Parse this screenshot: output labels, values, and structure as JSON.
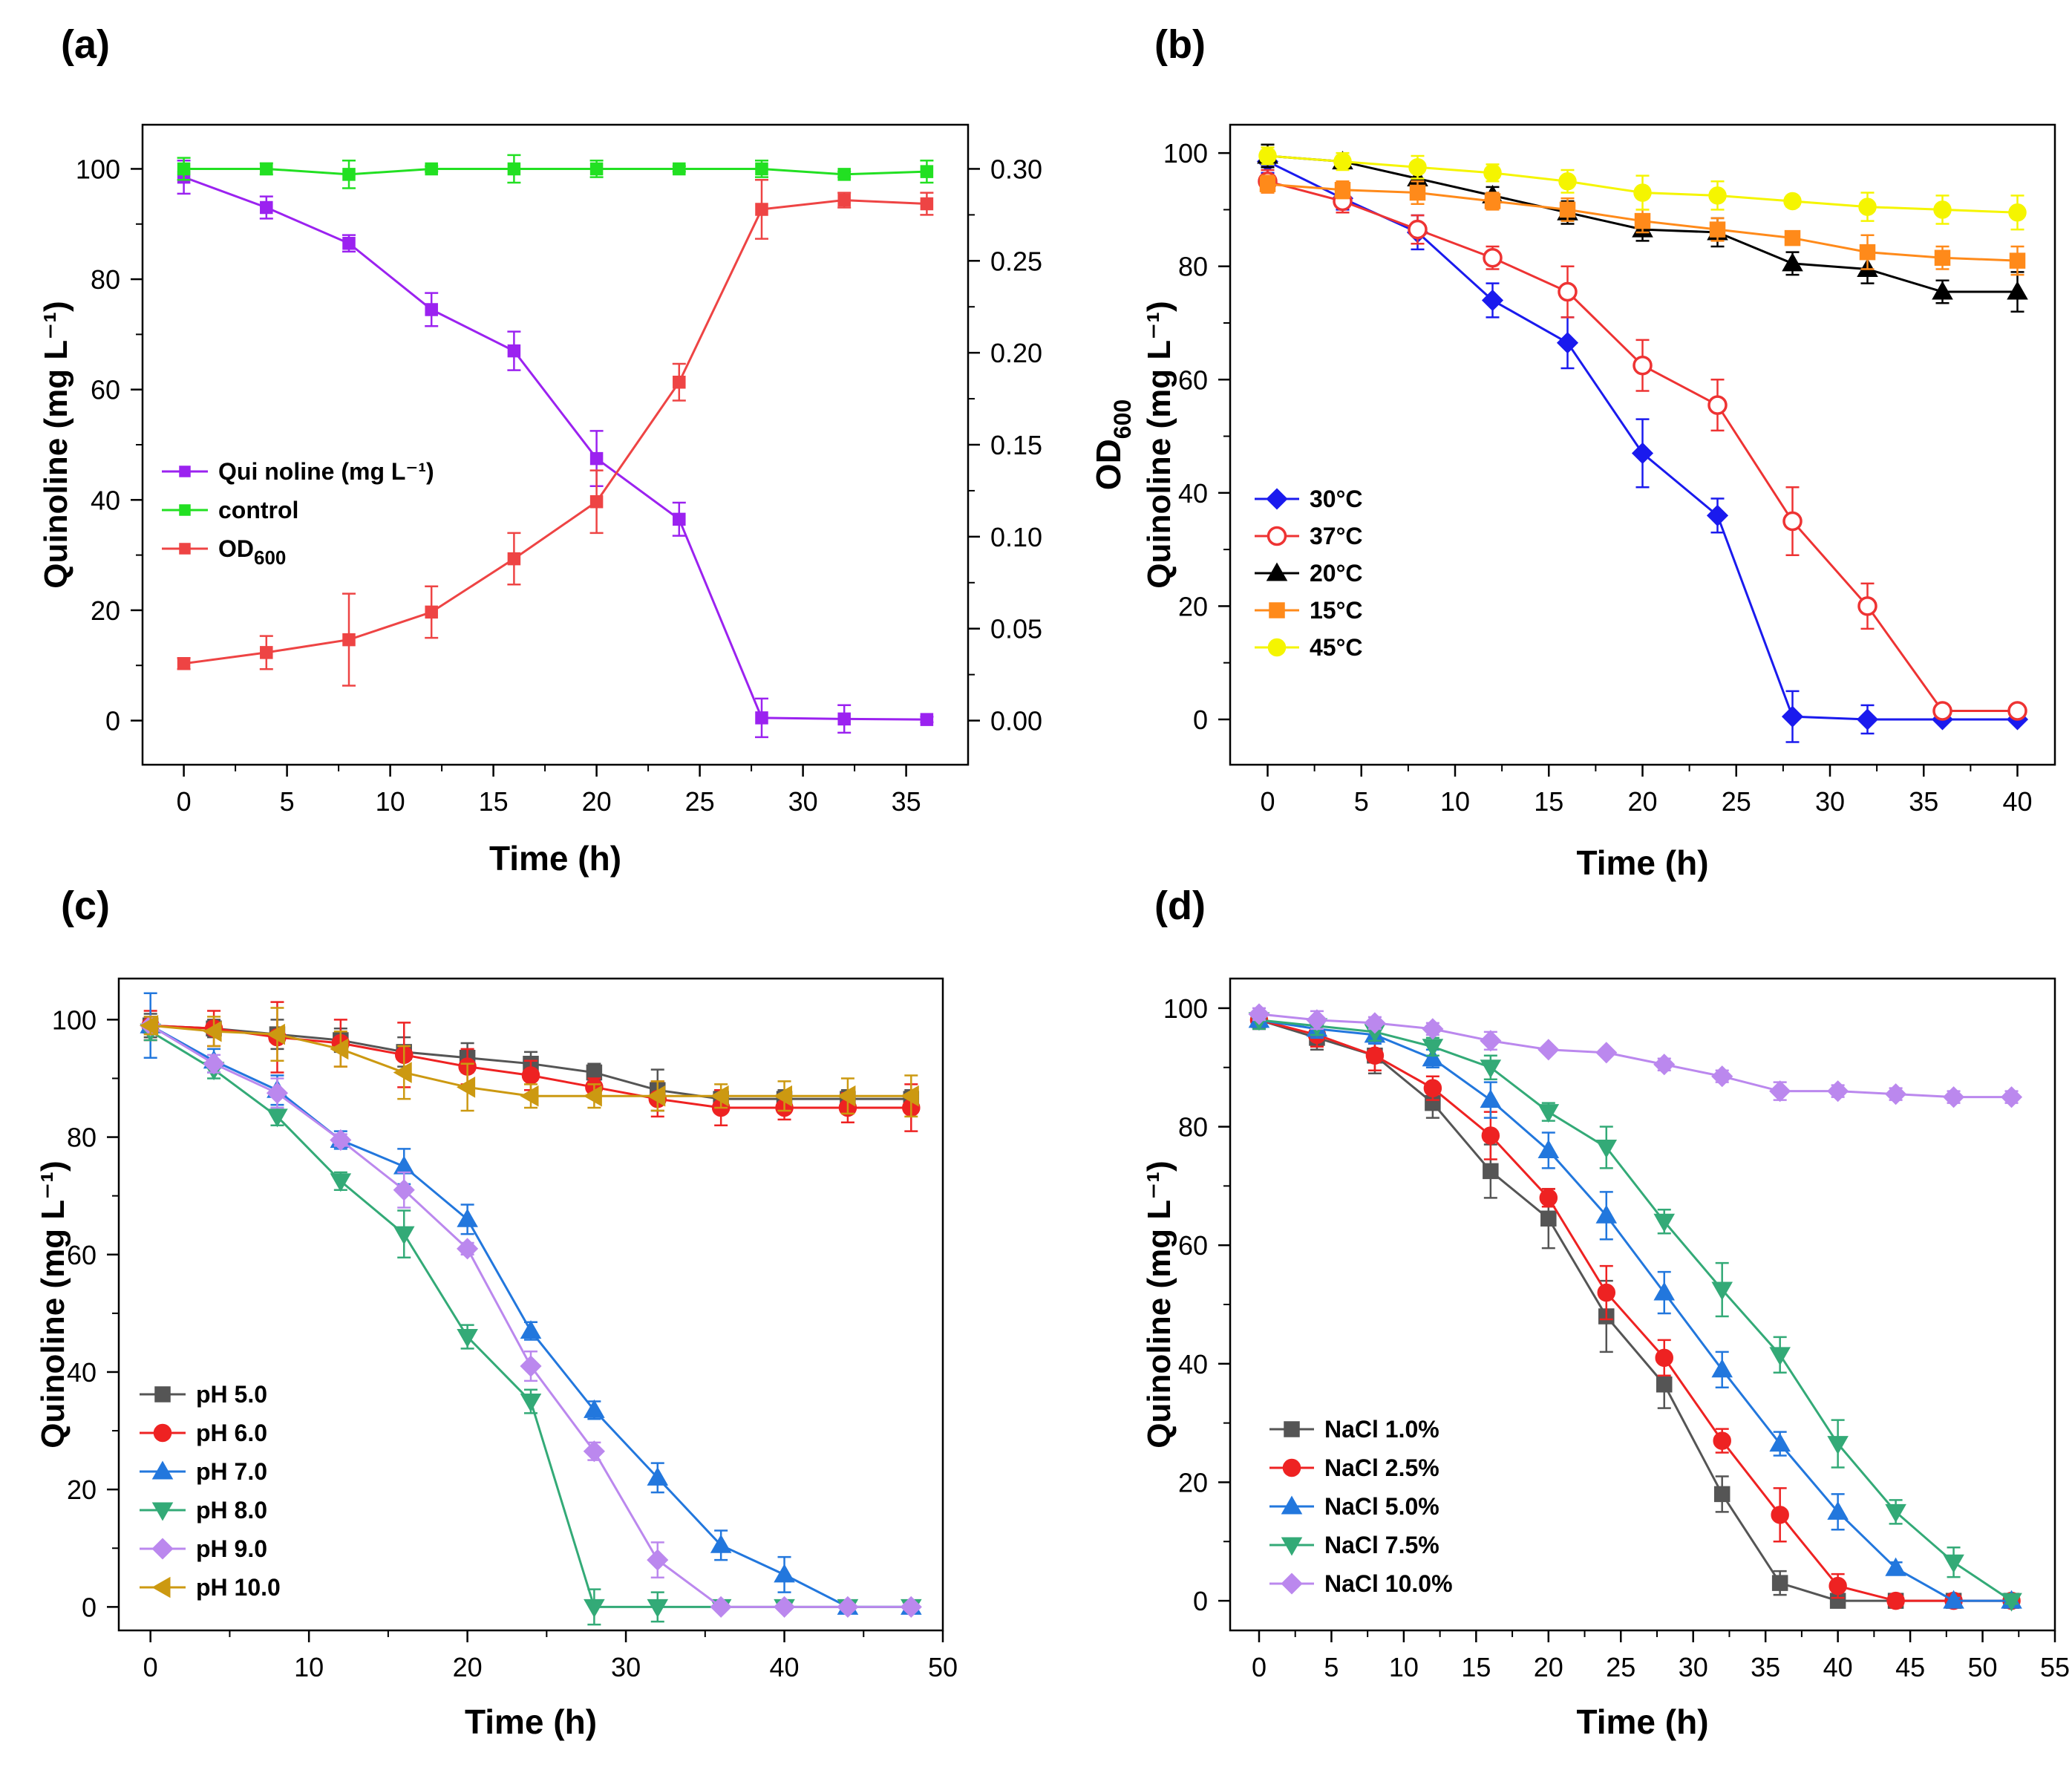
{
  "figure": {
    "colors": {
      "axis": "#000000",
      "background": "#ffffff"
    }
  },
  "chart_data": [
    {
      "id": "a",
      "panel_label": "(a)",
      "type": "line",
      "title": "",
      "xlabel": "Time (h)",
      "ylabel": "Quinoline  (mg L⁻¹)",
      "y2label_main": "OD",
      "y2label_sub": "600",
      "xlim": [
        -2,
        38
      ],
      "ylim": [
        -8,
        108
      ],
      "y2lim": [
        -0.024,
        0.324
      ],
      "xticks": [
        0,
        5,
        10,
        15,
        20,
        25,
        30,
        35
      ],
      "yticks": [
        0,
        20,
        40,
        60,
        80,
        100
      ],
      "y2ticks": [
        "0.00",
        "0.05",
        "0.10",
        "0.15",
        "0.20",
        "0.25",
        "0.30"
      ],
      "legend": {
        "position": "middle-left",
        "entries_text": [
          "Qui noline (mg L⁻¹)",
          "control",
          "OD",
          "600"
        ]
      },
      "series": [
        {
          "name": "Qui noline (mg L⁻¹)",
          "color": "#9b22f0",
          "marker": "square",
          "axis": "left",
          "x": [
            0,
            4,
            8,
            12,
            16,
            20,
            24,
            28,
            32,
            36
          ],
          "y": [
            98.5,
            93,
            86.5,
            74.5,
            67,
            47.5,
            36.5,
            0.5,
            0.3,
            0.2
          ],
          "err": [
            3,
            2,
            1.5,
            3,
            3.5,
            5,
            3,
            3.5,
            2.5,
            0.5
          ]
        },
        {
          "name": "control",
          "color": "#22e022",
          "marker": "square",
          "axis": "left",
          "x": [
            0,
            4,
            8,
            12,
            16,
            20,
            24,
            28,
            32,
            36
          ],
          "y": [
            100,
            100,
            99,
            100,
            100,
            100,
            100,
            100,
            99,
            99.5
          ],
          "err": [
            2,
            1,
            2.5,
            0.5,
            2.5,
            1.5,
            0.5,
            1.5,
            0.5,
            2
          ]
        },
        {
          "name": "OD600",
          "color": "#ee4444",
          "marker": "square",
          "axis": "right",
          "x": [
            0,
            4,
            8,
            12,
            16,
            20,
            24,
            28,
            32,
            36
          ],
          "y": [
            0.031,
            0.037,
            0.044,
            0.059,
            0.088,
            0.119,
            0.184,
            0.278,
            0.283,
            0.281
          ],
          "err": [
            0.003,
            0.009,
            0.025,
            0.014,
            0.014,
            0.017,
            0.01,
            0.016,
            0.004,
            0.006
          ]
        }
      ]
    },
    {
      "id": "b",
      "panel_label": "(b)",
      "type": "line",
      "title": "",
      "xlabel": "Time (h)",
      "ylabel": "Quinoline  (mg L⁻¹)",
      "xlim": [
        -2,
        42
      ],
      "ylim": [
        -8,
        105
      ],
      "xticks": [
        0,
        5,
        10,
        15,
        20,
        25,
        30,
        35,
        40
      ],
      "yticks": [
        0,
        20,
        40,
        60,
        80,
        100
      ],
      "legend": {
        "position": "lower-left"
      },
      "series": [
        {
          "name": "30°C",
          "color": "#1a1aee",
          "marker": "diamond",
          "fill": true,
          "x": [
            0,
            4,
            8,
            12,
            16,
            20,
            24,
            28,
            32,
            36,
            40
          ],
          "y": [
            98.5,
            92,
            86,
            74,
            66.5,
            47,
            36,
            0.5,
            0,
            0,
            0
          ],
          "err": [
            2,
            2,
            3,
            3,
            4.5,
            6,
            3,
            4.5,
            2.5,
            0.5,
            0.5
          ]
        },
        {
          "name": "37°C",
          "color": "#ee3333",
          "marker": "circle",
          "fill": false,
          "x": [
            0,
            4,
            8,
            12,
            16,
            20,
            24,
            28,
            32,
            36,
            40
          ],
          "y": [
            95,
            91.5,
            86.5,
            81.5,
            75.5,
            62.5,
            55.5,
            35,
            20,
            1.5,
            1.5
          ],
          "err": [
            2,
            2,
            2.5,
            2,
            4.5,
            4.5,
            4.5,
            6,
            4,
            0.5,
            0.5
          ]
        },
        {
          "name": "20°C",
          "color": "#000000",
          "marker": "triangle-up",
          "fill": true,
          "x": [
            0,
            4,
            8,
            12,
            16,
            20,
            24,
            28,
            32,
            36,
            40
          ],
          "y": [
            99.5,
            98.5,
            95.5,
            92.5,
            89.5,
            86.5,
            86,
            80.5,
            79.5,
            75.5,
            75.5
          ],
          "err": [
            2,
            1,
            2,
            1.5,
            2,
            2,
            2.5,
            2,
            2.5,
            2,
            3.5
          ]
        },
        {
          "name": "15°C",
          "color": "#ff8a1a",
          "marker": "square",
          "fill": true,
          "x": [
            0,
            4,
            8,
            12,
            16,
            20,
            24,
            28,
            32,
            36,
            40
          ],
          "y": [
            94.5,
            93.5,
            93,
            91.5,
            90,
            88,
            86.5,
            85,
            82.5,
            81.5,
            81
          ],
          "err": [
            1.5,
            1.5,
            2,
            1.5,
            2,
            2,
            2,
            1,
            3,
            2,
            2.5
          ]
        },
        {
          "name": "45°C",
          "color": "#f5f500",
          "marker": "circle",
          "fill": true,
          "x": [
            0,
            4,
            8,
            12,
            16,
            20,
            24,
            28,
            32,
            36,
            40
          ],
          "y": [
            99.5,
            98.5,
            97.5,
            96.5,
            95,
            93,
            92.5,
            91.5,
            90.5,
            90,
            89.5
          ],
          "err": [
            1.5,
            1.5,
            2,
            1.5,
            2,
            3,
            2.5,
            1,
            2.5,
            2.5,
            3
          ]
        }
      ]
    },
    {
      "id": "c",
      "panel_label": "(c)",
      "type": "line",
      "title": "",
      "xlabel": "Time (h)",
      "ylabel": "Quinoline  (mg L⁻¹)",
      "xlim": [
        -2,
        50
      ],
      "ylim": [
        -4,
        107
      ],
      "xticks": [
        0,
        10,
        20,
        30,
        40,
        50
      ],
      "yticks": [
        0,
        20,
        40,
        60,
        80,
        100
      ],
      "legend": {
        "position": "lower-left"
      },
      "series": [
        {
          "name": "pH 5.0",
          "color": "#555555",
          "marker": "square",
          "x": [
            0,
            4,
            8,
            12,
            16,
            20,
            24,
            28,
            32,
            36,
            40,
            44,
            48
          ],
          "y": [
            99,
            98.5,
            97.5,
            96.5,
            94.5,
            93.5,
            92.5,
            91,
            88,
            86.5,
            86.5,
            86.5,
            86.5
          ],
          "err": [
            2,
            1.5,
            2.5,
            2,
            2.5,
            2.5,
            2,
            1.5,
            3.5,
            1.5,
            1.5,
            1.5,
            1.5
          ]
        },
        {
          "name": "pH 6.0",
          "color": "#ee2222",
          "marker": "circle",
          "x": [
            0,
            4,
            8,
            12,
            16,
            20,
            24,
            28,
            32,
            36,
            40,
            44,
            48
          ],
          "y": [
            99,
            98.5,
            97,
            96,
            94,
            92,
            90.5,
            88.5,
            86.5,
            85,
            85,
            85,
            85
          ],
          "err": [
            2.5,
            3,
            6,
            4,
            5.5,
            3,
            2.5,
            1.5,
            3,
            3,
            2,
            2.5,
            4
          ]
        },
        {
          "name": "pH 7.0",
          "color": "#2277dd",
          "marker": "triangle-up",
          "x": [
            0,
            4,
            8,
            12,
            16,
            20,
            24,
            28,
            32,
            36,
            40,
            44,
            48
          ],
          "y": [
            99,
            93,
            88,
            79.5,
            75,
            66,
            47,
            33.5,
            22,
            10.5,
            5.5,
            0,
            0
          ],
          "err": [
            5.5,
            2,
            2.5,
            1.5,
            3,
            2.5,
            1.5,
            1.5,
            2.5,
            2.5,
            3,
            0.5,
            0.5
          ]
        },
        {
          "name": "pH 8.0",
          "color": "#33aa77",
          "marker": "triangle-down",
          "x": [
            0,
            4,
            8,
            12,
            16,
            20,
            24,
            28,
            32,
            36,
            40,
            44,
            48
          ],
          "y": [
            98,
            91.5,
            83.5,
            72.5,
            63.5,
            46,
            35,
            0,
            0,
            0,
            0,
            0,
            0
          ],
          "err": [
            1.5,
            1.5,
            1.5,
            1.5,
            4,
            2,
            2,
            3,
            2.5,
            0.5,
            0.5,
            0.5,
            0.5
          ]
        },
        {
          "name": "pH 9.0",
          "color": "#bb88ee",
          "marker": "diamond",
          "x": [
            0,
            4,
            8,
            12,
            16,
            20,
            24,
            28,
            32,
            36,
            40,
            44,
            48
          ],
          "y": [
            99,
            92.5,
            87.5,
            79.5,
            71,
            61,
            41,
            26.5,
            8,
            0,
            0,
            0,
            0
          ],
          "err": [
            1.5,
            1.5,
            2.5,
            1,
            3,
            1,
            2.5,
            1.5,
            3,
            0.5,
            0.5,
            0.5,
            0.5
          ]
        },
        {
          "name": "pH 10.0",
          "color": "#cc9911",
          "marker": "triangle-left",
          "x": [
            0,
            4,
            8,
            12,
            16,
            20,
            24,
            28,
            32,
            36,
            40,
            44,
            48
          ],
          "y": [
            99,
            98,
            97.5,
            95,
            91,
            88.5,
            87,
            87,
            87,
            87,
            87,
            87,
            87
          ],
          "err": [
            1.5,
            2.5,
            4.5,
            3,
            4.5,
            4,
            2,
            2,
            2.5,
            2,
            2.5,
            3,
            3.5
          ]
        }
      ]
    },
    {
      "id": "d",
      "panel_label": "(d)",
      "type": "line",
      "title": "",
      "xlabel": "Time (h)",
      "ylabel": "Quinoline  (mg L⁻¹)",
      "xlim": [
        -2,
        55
      ],
      "ylim": [
        -5,
        105
      ],
      "xticks": [
        0,
        5,
        10,
        15,
        20,
        25,
        30,
        35,
        40,
        45,
        50,
        55
      ],
      "yticks": [
        0,
        20,
        40,
        60,
        80,
        100
      ],
      "legend": {
        "position": "lower-left"
      },
      "series": [
        {
          "name": "NaCl 1.0%",
          "color": "#555555",
          "marker": "square",
          "x": [
            0,
            4,
            8,
            12,
            16,
            20,
            24,
            28,
            32,
            36,
            40,
            44,
            48,
            52
          ],
          "y": [
            98,
            95,
            92,
            84,
            72.5,
            64.5,
            48,
            36.5,
            18,
            3,
            0,
            0,
            0,
            0
          ],
          "err": [
            1.5,
            2,
            3,
            2.5,
            4.5,
            5,
            6,
            4,
            3,
            2,
            0.5,
            0.5,
            0.5,
            0.5
          ]
        },
        {
          "name": "NaCl 2.5%",
          "color": "#ee2222",
          "marker": "circle",
          "x": [
            0,
            4,
            8,
            12,
            16,
            20,
            24,
            28,
            32,
            36,
            40,
            44,
            48,
            52
          ],
          "y": [
            98,
            95.5,
            92,
            86.5,
            78.5,
            68,
            52,
            41,
            27,
            14.5,
            2.5,
            0,
            0,
            0
          ],
          "err": [
            1.5,
            2,
            2.5,
            2,
            4,
            1.5,
            4.5,
            3,
            2,
            4.5,
            2,
            0.5,
            0.5,
            0.5
          ]
        },
        {
          "name": "NaCl 5.0%",
          "color": "#2277dd",
          "marker": "triangle-up",
          "x": [
            0,
            4,
            8,
            12,
            16,
            20,
            24,
            28,
            32,
            36,
            40,
            44,
            48,
            52
          ],
          "y": [
            98,
            96.5,
            95.5,
            91.5,
            84.5,
            76,
            65,
            52,
            39,
            26.5,
            15,
            5.5,
            0,
            0
          ],
          "err": [
            1.5,
            1.5,
            1.5,
            1.5,
            3,
            3,
            4,
            3.5,
            3,
            2,
            3,
            1,
            0.5,
            0.5
          ]
        },
        {
          "name": "NaCl 7.5%",
          "color": "#33aa77",
          "marker": "triangle-down",
          "x": [
            0,
            4,
            8,
            12,
            16,
            20,
            24,
            28,
            32,
            36,
            40,
            44,
            48,
            52
          ],
          "y": [
            98,
            97,
            96,
            93.5,
            90,
            82.5,
            76.5,
            64,
            52.5,
            41.5,
            26.5,
            15,
            6.5,
            0
          ],
          "err": [
            1.5,
            1.5,
            1.5,
            1.5,
            2,
            1.5,
            3.5,
            2,
            4.5,
            3,
            4,
            2,
            2.5,
            0.5
          ]
        },
        {
          "name": "NaCl 10.0%",
          "color": "#bb88ee",
          "marker": "diamond",
          "x": [
            0,
            4,
            8,
            12,
            16,
            20,
            24,
            28,
            32,
            36,
            40,
            44,
            48,
            52
          ],
          "y": [
            99,
            98,
            97.5,
            96.5,
            94.5,
            93,
            92.5,
            90.5,
            88.5,
            86,
            86,
            85.5,
            85,
            85
          ],
          "err": [
            1,
            1.5,
            1,
            1,
            1.5,
            0.5,
            0.5,
            1,
            1,
            1.5,
            1,
            1,
            1,
            1
          ]
        }
      ]
    }
  ]
}
